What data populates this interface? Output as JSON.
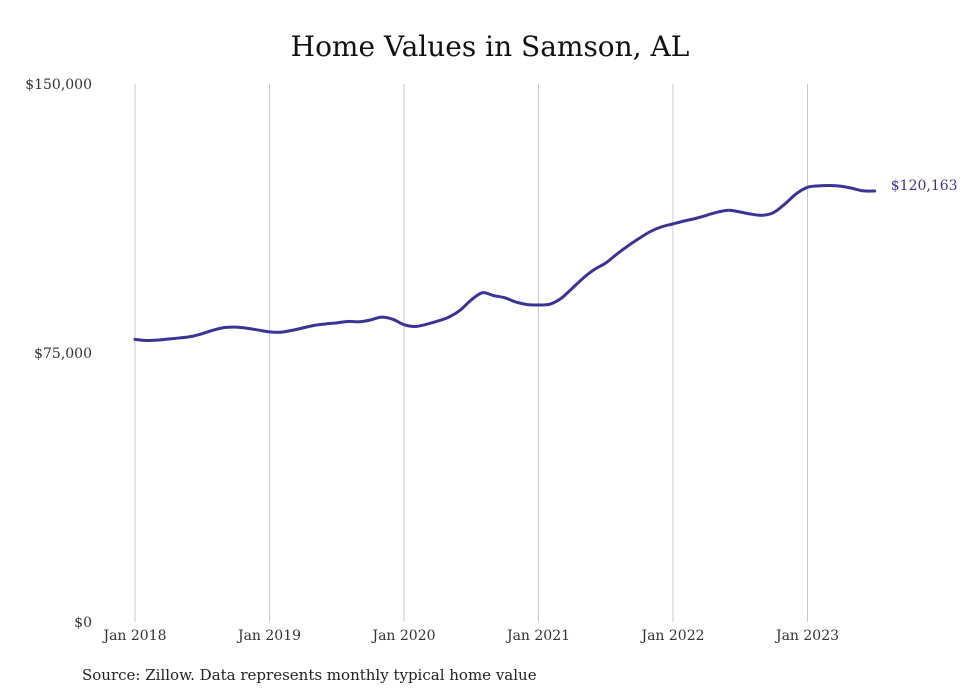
{
  "chart_data": {
    "type": "line",
    "title": "Home Values in Samson, AL",
    "source": "Source: Zillow. Data represents monthly typical home value",
    "xlabel": "",
    "ylabel": "",
    "ylim": [
      0,
      150000
    ],
    "yticks": [
      {
        "value": 0,
        "label": "$0"
      },
      {
        "value": 75000,
        "label": "$75,000"
      },
      {
        "value": 150000,
        "label": "$150,000"
      }
    ],
    "xticks": [
      {
        "value": "2018-01",
        "label": "Jan 2018"
      },
      {
        "value": "2019-01",
        "label": "Jan 2019"
      },
      {
        "value": "2020-01",
        "label": "Jan 2020"
      },
      {
        "value": "2021-01",
        "label": "Jan 2021"
      },
      {
        "value": "2022-01",
        "label": "Jan 2022"
      },
      {
        "value": "2023-01",
        "label": "Jan 2023"
      }
    ],
    "grid": "vertical",
    "line_color": "#3b3496",
    "end_label": "$120,163",
    "series": [
      {
        "x": [
          "2018-01",
          "2018-02",
          "2018-03",
          "2018-04",
          "2018-05",
          "2018-06",
          "2018-07",
          "2018-08",
          "2018-09",
          "2018-10",
          "2018-11",
          "2018-12",
          "2019-01",
          "2019-02",
          "2019-03",
          "2019-04",
          "2019-05",
          "2019-06",
          "2019-07",
          "2019-08",
          "2019-09",
          "2019-10",
          "2019-11",
          "2019-12",
          "2020-01",
          "2020-02",
          "2020-03",
          "2020-04",
          "2020-05",
          "2020-06",
          "2020-07",
          "2020-08",
          "2020-09",
          "2020-10",
          "2020-11",
          "2020-12",
          "2021-01",
          "2021-02",
          "2021-03",
          "2021-04",
          "2021-05",
          "2021-06",
          "2021-07",
          "2021-08",
          "2021-09",
          "2021-10",
          "2021-11",
          "2021-12",
          "2022-01",
          "2022-02",
          "2022-03",
          "2022-04",
          "2022-05",
          "2022-06",
          "2022-07",
          "2022-08",
          "2022-09",
          "2022-10",
          "2022-11",
          "2022-12",
          "2023-01",
          "2023-02",
          "2023-03",
          "2023-04",
          "2023-05",
          "2023-06",
          "2023-07"
        ],
        "values": [
          78800,
          78500,
          78600,
          78900,
          79200,
          79600,
          80400,
          81400,
          82100,
          82200,
          81900,
          81400,
          80900,
          80800,
          81300,
          82000,
          82700,
          83100,
          83400,
          83800,
          83700,
          84200,
          85000,
          84400,
          82900,
          82400,
          83000,
          83900,
          85000,
          86900,
          89800,
          91800,
          91000,
          90400,
          89200,
          88500,
          88400,
          88600,
          90200,
          93000,
          95900,
          98300,
          100100,
          102600,
          104900,
          107000,
          108900,
          110200,
          111000,
          111800,
          112500,
          113400,
          114300,
          114800,
          114300,
          113700,
          113400,
          114200,
          116600,
          119400,
          121200,
          121600,
          121700,
          121500,
          120900,
          120200,
          120163
        ]
      }
    ]
  }
}
